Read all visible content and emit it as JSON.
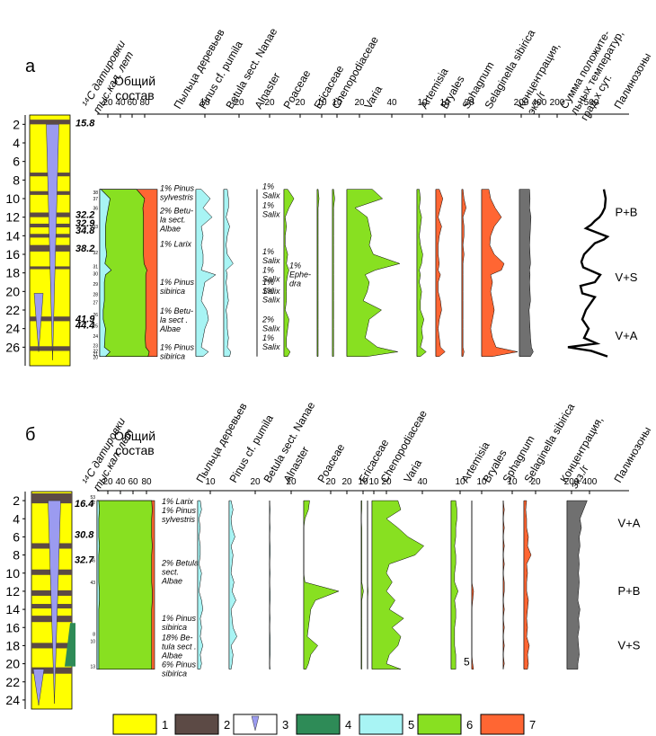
{
  "colors": {
    "yellow": "#ffff00",
    "brown": "#5c4a45",
    "violet": "#9b9bf0",
    "dark_green": "#2e8b57",
    "cyan": "#a8f4f4",
    "green": "#88e021",
    "red": "#ff6633",
    "gray": "#707070",
    "black": "#000000"
  },
  "legend": {
    "items": [
      {
        "num": "1",
        "kind": "fill",
        "color": "yellow"
      },
      {
        "num": "2",
        "kind": "fill",
        "color": "brown"
      },
      {
        "num": "3",
        "kind": "wedge",
        "color": "violet"
      },
      {
        "num": "4",
        "kind": "fill",
        "color": "dark_green"
      },
      {
        "num": "5",
        "kind": "fill",
        "color": "cyan"
      },
      {
        "num": "6",
        "kind": "fill",
        "color": "green"
      },
      {
        "num": "7",
        "kind": "fill",
        "color": "red"
      }
    ]
  },
  "chart_data": [
    {
      "panel_label": "а",
      "type": "area",
      "y_range": [
        1,
        28
      ],
      "depth_ticks": [
        "2",
        "4",
        "6",
        "8",
        "10",
        "12",
        "14",
        "16",
        "18",
        "20",
        "22",
        "24",
        "26"
      ],
      "dating_title_lines": [
        "¹⁴С датировки",
        "тыс.кал. лет"
      ],
      "column_titles": [
        "Общий состав",
        "Пыльца деревьев",
        "Pinus cf. pumila",
        "Betula sect. Nanae",
        "Alnaster",
        "Poaceae",
        "Ericaceae",
        "Chenopodiaceae",
        "Varia",
        "Artemisia",
        "Bryales",
        "Sphagnum",
        "Selaginella sibirica",
        "Концентрация, экз./г",
        "Сумма положите- льных температур, град.х сут.",
        "Палинозоны"
      ],
      "axis_ticks": [
        "20",
        "40",
        "60",
        "80",
        "10",
        "20",
        "20",
        "20",
        "10",
        "10",
        "20",
        "40",
        "10",
        "10",
        "20",
        "200",
        "400",
        "200",
        "500"
      ],
      "dates": [
        {
          "depth": 1.8,
          "label": "15.8"
        },
        {
          "depth": 11.7,
          "label": "32.2"
        },
        {
          "depth": 12.6,
          "label": "32.9"
        },
        {
          "depth": 13.4,
          "label": "34.8"
        },
        {
          "depth": 15.3,
          "label": "38.2"
        },
        {
          "depth": 22.9,
          "label": "41.9"
        },
        {
          "depth": 23.6,
          "label": "44.4"
        }
      ],
      "dark_layers": [
        [
          1.5,
          2.0
        ],
        [
          7.2,
          7.6
        ],
        [
          9.2,
          9.6
        ],
        [
          11.5,
          12.0
        ],
        [
          12.7,
          13.1
        ],
        [
          13.8,
          14.2
        ],
        [
          15.0,
          15.7
        ],
        [
          17.3,
          17.6
        ],
        [
          22.7,
          23.2
        ],
        [
          25.9,
          26.4
        ]
      ],
      "sample_numbers": [
        {
          "depth": 9.3,
          "n": "38"
        },
        {
          "depth": 10.0,
          "n": "37"
        },
        {
          "depth": 11.0,
          "n": "36"
        },
        {
          "depth": 13.0,
          "n": "33"
        },
        {
          "depth": 15.8,
          "n": "32"
        },
        {
          "depth": 17.3,
          "n": "31"
        },
        {
          "depth": 18.1,
          "n": "30"
        },
        {
          "depth": 19.2,
          "n": "29"
        },
        {
          "depth": 20.3,
          "n": "28"
        },
        {
          "depth": 21.2,
          "n": "27"
        },
        {
          "depth": 22.5,
          "n": "26"
        },
        {
          "depth": 23.7,
          "n": "25"
        },
        {
          "depth": 24.8,
          "n": "24"
        },
        {
          "depth": 25.8,
          "n": "23"
        },
        {
          "depth": 26.4,
          "n": "22"
        },
        {
          "depth": 26.7,
          "n": "21"
        },
        {
          "depth": 27.1,
          "n": "20"
        }
      ],
      "depth": [
        9,
        10,
        11,
        12,
        13,
        14,
        15,
        16,
        17,
        17.7,
        18.2,
        19,
        20,
        21,
        22,
        23,
        24,
        25,
        26,
        26.5,
        27
      ],
      "composition": {
        "trees": [
          2,
          18,
          15,
          12,
          10,
          10,
          10,
          12,
          9,
          20,
          10,
          8,
          8,
          8,
          6,
          6,
          10,
          9,
          8,
          18,
          10
        ],
        "herbs": [
          62,
          60,
          60,
          64,
          66,
          66,
          66,
          64,
          68,
          62,
          70,
          72,
          72,
          72,
          74,
          74,
          70,
          70,
          72,
          68,
          74
        ]
      },
      "tree_notes": [
        {
          "depth": 9.2,
          "lines": [
            "1% Pinus",
            "sylvestris"
          ]
        },
        {
          "depth": 11.6,
          "lines": [
            "2% Betu-",
            "la sect.",
            "Albae"
          ]
        },
        {
          "depth": 15.2,
          "lines": [
            "1% Larix"
          ]
        },
        {
          "depth": 19.3,
          "lines": [
            "1% Pinus",
            "sibirica"
          ]
        },
        {
          "depth": 22.4,
          "lines": [
            "1% Betu-",
            "la sect .",
            "Albae"
          ]
        },
        {
          "depth": 26.3,
          "lines": [
            "1% Pinus",
            "sibirica"
          ]
        }
      ],
      "salix_notes": [
        {
          "depth": 9.0,
          "lines": [
            "1%",
            "Salix"
          ]
        },
        {
          "depth": 11.0,
          "lines": [
            "1%",
            "Salix"
          ]
        },
        {
          "depth": 16.0,
          "lines": [
            "1%",
            "Salix"
          ]
        },
        {
          "depth": 18.0,
          "lines": [
            "1%",
            "Salix"
          ]
        },
        {
          "depth": 19.3,
          "lines": [
            "1%",
            "Salix"
          ]
        },
        {
          "depth": 20.2,
          "lines": [
            "1%",
            "Salix"
          ]
        },
        {
          "depth": 23.3,
          "lines": [
            "2%",
            "Salix"
          ]
        },
        {
          "depth": 25.3,
          "lines": [
            "1%",
            "Salix"
          ]
        }
      ],
      "ephedra_note": {
        "depth": 17.5,
        "lines": [
          "1%",
          "Ephe-",
          "dra"
        ]
      },
      "curves": {
        "pinus_pumila": [
          3,
          8,
          4,
          9,
          3,
          4,
          3,
          4,
          4,
          3,
          11,
          5,
          4,
          3,
          6,
          7,
          5,
          4,
          3,
          7,
          4
        ],
        "betula_nanae": [
          3,
          4,
          4,
          2,
          5,
          3,
          2,
          3,
          8,
          2,
          3,
          2,
          3,
          4,
          2,
          3,
          3,
          4,
          3,
          6,
          5
        ],
        "alnaster": [
          0,
          0,
          0,
          0,
          0,
          0,
          0,
          0,
          0,
          0,
          0,
          0,
          0,
          0,
          0,
          0,
          0,
          0,
          0,
          0,
          0
        ],
        "poaceae": [
          3,
          8,
          4,
          1,
          2,
          1,
          1,
          3,
          2,
          4,
          3,
          2,
          2,
          2,
          1,
          4,
          3,
          2,
          2,
          5,
          3
        ],
        "ericaceae": [
          1,
          2,
          1,
          1,
          1,
          1,
          1,
          1,
          1,
          1,
          1,
          1,
          1,
          1,
          1,
          1,
          1,
          1,
          1,
          1,
          1
        ],
        "chenopodiaceae": [
          1,
          2,
          1,
          1,
          1,
          1,
          1,
          1,
          1,
          1,
          1,
          1,
          1,
          1,
          1,
          1,
          1,
          1,
          1,
          1,
          1
        ],
        "varia": [
          25,
          35,
          8,
          20,
          22,
          24,
          22,
          26,
          52,
          28,
          18,
          22,
          20,
          16,
          34,
          22,
          20,
          18,
          30,
          50,
          20
        ],
        "artemisia": [
          2,
          3,
          2,
          4,
          3,
          2,
          3,
          5,
          4,
          2,
          3,
          2,
          4,
          3,
          3,
          6,
          4,
          5,
          3,
          8,
          3
        ],
        "bryales": [
          3,
          6,
          4,
          2,
          5,
          3,
          2,
          2,
          3,
          2,
          4,
          2,
          2,
          4,
          5,
          3,
          2,
          3,
          4,
          8,
          3
        ],
        "sphagnum": [
          1,
          2,
          4,
          1,
          2,
          2,
          1,
          2,
          1,
          1,
          1,
          1,
          1,
          1,
          1,
          1,
          1,
          1,
          1,
          2,
          1
        ],
        "selaginella": [
          8,
          10,
          15,
          22,
          14,
          10,
          9,
          14,
          25,
          22,
          10,
          12,
          10,
          12,
          14,
          12,
          10,
          12,
          16,
          40,
          12
        ],
        "concentration": [
          220,
          230,
          220,
          250,
          240,
          230,
          220,
          230,
          240,
          220,
          230,
          220,
          230,
          240,
          210,
          220,
          230,
          240,
          260,
          300,
          240
        ]
      },
      "temperature": {
        "depth": [
          9,
          10,
          11,
          11.6,
          12,
          12.4,
          12.8,
          13.2,
          13.8,
          14.1,
          14.4,
          14.8,
          16,
          16.8,
          17.4,
          18.2,
          19,
          19.4,
          20.2,
          20.6,
          22,
          23,
          24,
          25,
          25.6,
          26,
          26.4,
          27
        ],
        "values": [
          520,
          540,
          530,
          500,
          470,
          420,
          380,
          320,
          480,
          560,
          520,
          420,
          300,
          270,
          290,
          480,
          420,
          260,
          280,
          420,
          320,
          280,
          350,
          300,
          440,
          120,
          380,
          560
        ]
      },
      "zones": [
        {
          "label": "P+B",
          "depth": 11.5
        },
        {
          "label": "V+S",
          "depth": 18.5
        },
        {
          "label": "V+A",
          "depth": 24.8
        }
      ]
    },
    {
      "panel_label": "б",
      "type": "area",
      "y_range": [
        1,
        25
      ],
      "depth_ticks": [
        "2",
        "4",
        "6",
        "8",
        "10",
        "12",
        "14",
        "16",
        "18",
        "20",
        "22",
        "24"
      ],
      "dating_title_lines": [
        "¹⁴С датировки",
        "тыс.кал. лет"
      ],
      "column_titles": [
        "Общий состав",
        "Пыльца деревьев",
        "Pinus cf. pumila",
        "Betula sect. Nanae",
        "Alnaster",
        "Poaceae",
        "Ericaceae",
        "Chenopodiaceae",
        "Varia",
        "Artemisia",
        "Bryales",
        "Sphagnum",
        "Selaginella sibirica",
        "Концентрация, экз./г",
        "Палинозоны"
      ],
      "axis_ticks": [
        "20",
        "40",
        "60",
        "80",
        "10",
        "20",
        "20",
        "20",
        "20",
        "10",
        "10",
        "20",
        "40",
        "10",
        "10",
        "10",
        "20",
        "200",
        "400"
      ],
      "dates": [
        {
          "depth": 2.3,
          "label": "16.4"
        },
        {
          "depth": 5.7,
          "label": "30.8"
        },
        {
          "depth": 8.5,
          "label": "32.7"
        }
      ],
      "dark_layers": [
        [
          1.2,
          2.3
        ],
        [
          6.7,
          7.3
        ],
        [
          9.6,
          10.2
        ],
        [
          11.9,
          12.5
        ],
        [
          13.4,
          13.9
        ],
        [
          14.7,
          15.4
        ],
        [
          17.7,
          18.3
        ],
        [
          20.4,
          21.1
        ]
      ],
      "sample_numbers": [
        {
          "depth": 1.6,
          "n": "53"
        },
        {
          "depth": 2.2,
          "n": "52"
        },
        {
          "depth": 8.6,
          "n": "46"
        },
        {
          "depth": 11.0,
          "n": "43"
        },
        {
          "depth": 16.7,
          "n": "8"
        },
        {
          "depth": 17.5,
          "n": "10"
        },
        {
          "depth": 20.3,
          "n": "13"
        }
      ],
      "depth": [
        2,
        3,
        4,
        5,
        6,
        7,
        8,
        9,
        10,
        11,
        12,
        13,
        14,
        15,
        16,
        17,
        18,
        19,
        20,
        20.6
      ],
      "composition": {
        "trees": [
          3,
          4,
          3,
          3,
          3,
          4,
          3,
          3,
          3,
          3,
          4,
          4,
          3,
          3,
          3,
          3,
          3,
          3,
          3,
          3
        ],
        "herbs": [
          92,
          92,
          92,
          92,
          92,
          92,
          92,
          92,
          92,
          92,
          92,
          92,
          92,
          92,
          92,
          92,
          92,
          92,
          92,
          92
        ]
      },
      "tree_notes": [
        {
          "depth": 2.4,
          "lines": [
            "1% Larix",
            "1% Pinus",
            "sylvestris"
          ]
        },
        {
          "depth": 9.2,
          "lines": [
            "2% Betula",
            "sect.",
            "Albae"
          ]
        },
        {
          "depth": 15.3,
          "lines": [
            "1% Pinus",
            "sibirica"
          ]
        },
        {
          "depth": 17.4,
          "lines": [
            "18% Be-",
            "tula sect .",
            "Albae",
            "6% Pinus",
            "sibirica"
          ]
        }
      ],
      "curves": {
        "pinus_pumila": [
          2,
          3,
          1,
          2,
          1,
          2,
          2,
          1,
          3,
          2,
          1,
          3,
          4,
          2,
          3,
          2,
          4,
          2,
          3,
          2
        ],
        "betula_nanae": [
          2,
          4,
          2,
          3,
          6,
          2,
          4,
          3,
          2,
          5,
          3,
          7,
          2,
          3,
          4,
          8,
          2,
          4,
          3,
          2
        ],
        "alnaster": [
          0,
          1,
          0,
          1,
          0,
          1,
          1,
          0,
          1,
          0,
          1,
          1,
          0,
          1,
          0,
          1,
          1,
          1,
          0,
          1
        ],
        "poaceae": [
          5,
          4,
          1,
          0,
          0,
          0,
          0,
          0,
          0,
          1,
          30,
          10,
          6,
          5,
          4,
          3,
          12,
          6,
          4,
          2
        ],
        "ericaceae": [
          1,
          1,
          0,
          1,
          1,
          1,
          1,
          1,
          1,
          1,
          4,
          1,
          1,
          1,
          1,
          1,
          1,
          1,
          1,
          1
        ],
        "chenopodiaceae": [
          0,
          0,
          0,
          0,
          0,
          0,
          0,
          0,
          0,
          0,
          1,
          0,
          0,
          0,
          0,
          0,
          0,
          0,
          0,
          0
        ],
        "varia": [
          18,
          20,
          10,
          18,
          25,
          36,
          30,
          12,
          10,
          14,
          10,
          16,
          12,
          22,
          14,
          20,
          18,
          12,
          10,
          20
        ],
        "artemisia": [
          4,
          5,
          5,
          4,
          4,
          3,
          4,
          4,
          3,
          3,
          6,
          3,
          4,
          4,
          3,
          3,
          3,
          4,
          4,
          4
        ],
        "bryales": [
          0,
          0,
          0,
          0,
          0,
          0,
          0,
          0,
          0,
          0,
          2,
          1,
          0,
          0,
          0,
          0,
          0,
          0,
          1,
          2
        ],
        "sphagnum": [
          0,
          1,
          0,
          1,
          0,
          1,
          0,
          1,
          0,
          1,
          1,
          0,
          1,
          0,
          1,
          0,
          1,
          0,
          1,
          0
        ],
        "selaginella": [
          3,
          2,
          3,
          3,
          5,
          4,
          8,
          3,
          4,
          3,
          3,
          5,
          4,
          3,
          4,
          3,
          6,
          4,
          5,
          4
        ],
        "concentration": [
          280,
          230,
          180,
          200,
          170,
          180,
          160,
          170,
          160,
          170,
          160,
          150,
          180,
          160,
          170,
          150,
          160,
          170,
          150,
          150
        ]
      },
      "notes": [
        {
          "depth": 19.8,
          "label": "5"
        }
      ],
      "zones": [
        {
          "label": "V+A",
          "depth": 4.5
        },
        {
          "label": "P+B",
          "depth": 12.0
        },
        {
          "label": "V+S",
          "depth": 18.0
        }
      ]
    }
  ]
}
